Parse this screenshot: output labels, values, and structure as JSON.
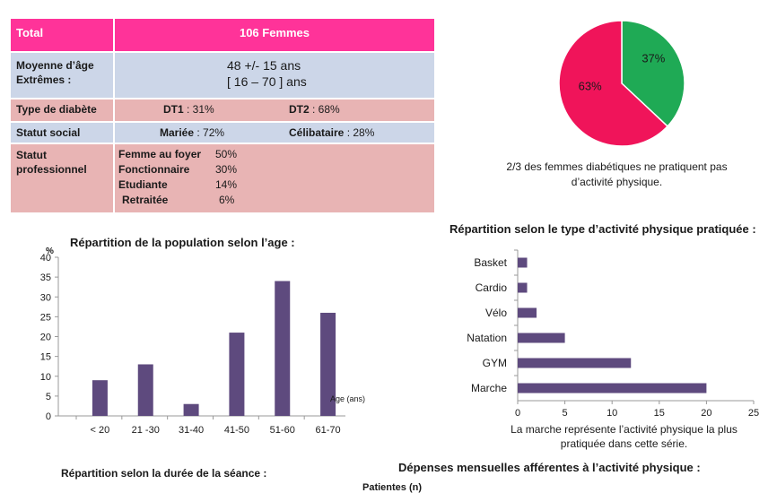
{
  "table": {
    "total_label": "Total",
    "total_value": "106 Femmes",
    "age_label_1": "Moyenne d’âge",
    "age_label_2": "Extrêmes :",
    "age_mean": "48   +/-    15 ans",
    "age_range": "[ 16 – 70 ] ans",
    "diabetes_label": "Type de diabète",
    "dt1_label": "DT1",
    "dt1_value": " :  31%",
    "dt2_label": "DT2",
    "dt2_value": " : 68%",
    "social_label": "Statut social",
    "married_label": "Mariée",
    "married_value": " : 72%",
    "single_label": "Célibataire",
    "single_value": " : 28%",
    "prof_label_1": "Statut",
    "prof_label_2": "professionnel",
    "prof_items": [
      {
        "label": "Femme au foyer",
        "value": "50%"
      },
      {
        "label": "Fonctionnaire",
        "value": "30%"
      },
      {
        "label": "Etudiante",
        "value": "14%"
      },
      {
        "label": "Retraitée",
        "value": "6%"
      }
    ]
  },
  "captions": {
    "pie": "2/3 des femmes diabétiques ne pratiquent pas d’activité physique.",
    "activity": "La  marche représente l’activité physique la plus pratiquée dans cette série.",
    "duration_title": "Répartition selon la durée de la séance :",
    "expenses_title": "Dépenses mensuelles afférentes à l’activité physique :",
    "patients_label": "Patientes (n)"
  },
  "colors": {
    "pink": "#ff3399",
    "blue": "#ccd6e8",
    "rose": "#e8b4b4",
    "bar": "#5e4a7e",
    "pie_pink": "#f0145a",
    "pie_green": "#1faa55"
  },
  "chart_data": [
    {
      "type": "pie",
      "labels": [
        "37%",
        "63%"
      ],
      "values": [
        37,
        63
      ],
      "colors": [
        "#1faa55",
        "#f0145a"
      ],
      "title": ""
    },
    {
      "type": "bar",
      "title": "Répartition de la population selon  l’age :",
      "ylabel": "%",
      "xlabel": "Age (ans)",
      "categories": [
        "< 20",
        "21 -30",
        "31-40",
        "41-50",
        "51-60",
        "61-70"
      ],
      "values": [
        9,
        13,
        3,
        21,
        34,
        26
      ],
      "ylim": [
        0,
        40
      ],
      "yticks": [
        0,
        5,
        10,
        15,
        20,
        25,
        30,
        35,
        40
      ]
    },
    {
      "type": "bar",
      "orientation": "horizontal",
      "title": "Répartition selon le type d’activité physique pratiquée :",
      "categories": [
        "Basket",
        "Cardio",
        "Vélo",
        "Natation",
        "GYM",
        "Marche"
      ],
      "values": [
        1,
        1,
        2,
        5,
        12,
        20
      ],
      "xlim": [
        0,
        25
      ],
      "xticks": [
        0,
        5,
        10,
        15,
        20,
        25
      ]
    }
  ]
}
